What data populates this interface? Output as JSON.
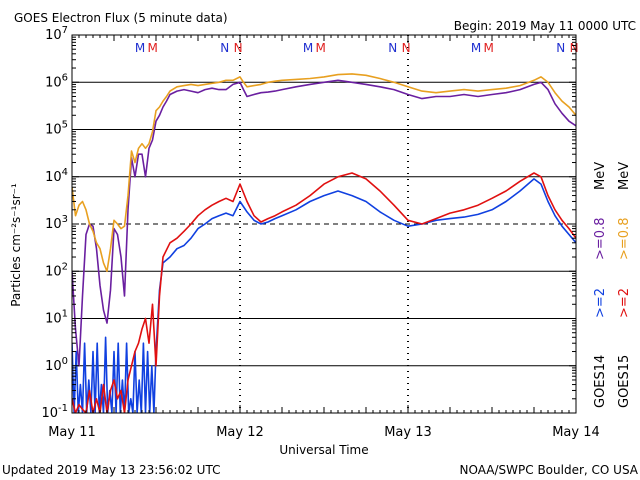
{
  "chart_data": {
    "type": "line",
    "title": "GOES Electron Flux (5 minute data)",
    "begin_label": "Begin: 2019 May 11 0000 UTC",
    "xlabel": "Universal Time",
    "ylabel": "Particles cm⁻²s⁻¹sr⁻¹",
    "y_scale": "log",
    "ylim": [
      0.1,
      10000000
    ],
    "y_ticks": [
      {
        "value": 0.1,
        "base": "10",
        "exp": "-1"
      },
      {
        "value": 1,
        "base": "10",
        "exp": "0"
      },
      {
        "value": 10,
        "base": "10",
        "exp": "1"
      },
      {
        "value": 100,
        "base": "10",
        "exp": "2"
      },
      {
        "value": 1000,
        "base": "10",
        "exp": "3"
      },
      {
        "value": 10000,
        "base": "10",
        "exp": "4"
      },
      {
        "value": 100000,
        "base": "10",
        "exp": "5"
      },
      {
        "value": 1000000,
        "base": "10",
        "exp": "6"
      },
      {
        "value": 10000000,
        "base": "10",
        "exp": "7"
      }
    ],
    "xlim_hours": [
      0,
      72
    ],
    "x_ticks": [
      {
        "hour": 0,
        "label": "May 11"
      },
      {
        "hour": 24,
        "label": "May 12"
      },
      {
        "hour": 48,
        "label": "May 13"
      },
      {
        "hour": 72,
        "label": "May 14"
      }
    ],
    "grid": true,
    "threshold_line": 1000,
    "markers": [
      {
        "hour": 10.3,
        "text": "M",
        "color": "#2030d0"
      },
      {
        "hour": 12.1,
        "text": "M",
        "color": "#e02020"
      },
      {
        "hour": 22.4,
        "text": "N",
        "color": "#2030d0"
      },
      {
        "hour": 24.3,
        "text": "N",
        "color": "#e02020"
      },
      {
        "hour": 34.3,
        "text": "M",
        "color": "#2030d0"
      },
      {
        "hour": 36.1,
        "text": "M",
        "color": "#e02020"
      },
      {
        "hour": 46.4,
        "text": "N",
        "color": "#2030d0"
      },
      {
        "hour": 48.3,
        "text": "N",
        "color": "#e02020"
      },
      {
        "hour": 58.3,
        "text": "M",
        "color": "#2030d0"
      },
      {
        "hour": 60.1,
        "text": "M",
        "color": "#e02020"
      },
      {
        "hour": 70.4,
        "text": "N",
        "color": "#2030d0"
      },
      {
        "hour": 72.3,
        "text": "N",
        "color": "#e02020"
      }
    ],
    "right_legend": {
      "goes14": "GOES14",
      "goes15": "GOES15",
      "ge2": ">=2",
      "ge08": ">=0.8",
      "mev": "MeV"
    },
    "series": [
      {
        "name": "GOES14 >=0.8 MeV",
        "color": "#6a1fa0",
        "x": [
          0,
          0.5,
          1,
          1.5,
          2,
          2.5,
          3,
          3.5,
          4,
          4.5,
          5,
          5.5,
          6,
          6.5,
          7,
          7.5,
          8,
          8.5,
          9,
          9.5,
          10,
          10.5,
          11,
          11.5,
          12,
          12.5,
          13,
          13.5,
          14,
          15,
          16,
          17,
          18,
          19,
          20,
          21,
          22,
          23,
          24,
          24.5,
          25,
          26,
          27,
          28,
          29,
          30,
          32,
          34,
          36,
          38,
          40,
          42,
          44,
          46,
          48,
          50,
          52,
          54,
          56,
          58,
          60,
          62,
          64,
          66,
          67,
          68,
          69,
          70,
          71,
          72
        ],
        "y": [
          100,
          6,
          1,
          30,
          600,
          1000,
          900,
          300,
          50,
          15,
          8,
          40,
          800,
          600,
          200,
          30,
          2000,
          25000,
          10000,
          30000,
          30000,
          10000,
          40000,
          60000,
          150000,
          200000,
          300000,
          400000,
          550000,
          650000,
          700000,
          650000,
          600000,
          700000,
          750000,
          700000,
          700000,
          900000,
          1000000,
          700000,
          500000,
          550000,
          600000,
          620000,
          650000,
          700000,
          800000,
          900000,
          1000000,
          1100000,
          1000000,
          900000,
          800000,
          700000,
          550000,
          450000,
          500000,
          500000,
          550000,
          500000,
          550000,
          600000,
          700000,
          900000,
          1000000,
          700000,
          350000,
          220000,
          150000,
          120000
        ]
      },
      {
        "name": "GOES15 >=0.8 MeV",
        "color": "#e8a020",
        "x": [
          0,
          0.5,
          1,
          1.5,
          2,
          2.5,
          3,
          3.5,
          4,
          4.5,
          5,
          5.5,
          6,
          6.5,
          7,
          7.5,
          8,
          8.5,
          9,
          9.5,
          10,
          10.5,
          11,
          11.5,
          12,
          12.5,
          13,
          13.5,
          14,
          15,
          16,
          17,
          18,
          19,
          20,
          21,
          22,
          23,
          24,
          24.5,
          25,
          26,
          27,
          28,
          29,
          30,
          32,
          34,
          36,
          38,
          40,
          42,
          44,
          46,
          48,
          50,
          52,
          54,
          56,
          58,
          60,
          62,
          64,
          66,
          67,
          68,
          69,
          70,
          71,
          72
        ],
        "y": [
          6000,
          1500,
          2500,
          3000,
          2000,
          1000,
          700,
          400,
          300,
          150,
          100,
          300,
          1200,
          1000,
          800,
          900,
          4000,
          35000,
          20000,
          40000,
          50000,
          40000,
          50000,
          90000,
          250000,
          300000,
          400000,
          500000,
          650000,
          800000,
          850000,
          900000,
          850000,
          900000,
          950000,
          1000000,
          1100000,
          1100000,
          1300000,
          1000000,
          800000,
          850000,
          900000,
          1000000,
          1050000,
          1100000,
          1150000,
          1200000,
          1300000,
          1450000,
          1500000,
          1400000,
          1200000,
          1000000,
          800000,
          650000,
          600000,
          650000,
          700000,
          650000,
          700000,
          750000,
          850000,
          1100000,
          1300000,
          1000000,
          600000,
          400000,
          300000,
          200000
        ]
      },
      {
        "name": "GOES14 >=2 MeV",
        "color": "#1040e0",
        "x": [
          0,
          0.3,
          0.6,
          0.9,
          1.2,
          1.5,
          1.8,
          2.1,
          2.4,
          2.7,
          3,
          3.3,
          3.6,
          3.9,
          4.2,
          4.5,
          4.8,
          5.1,
          5.4,
          5.7,
          6,
          6.3,
          6.6,
          6.9,
          7.2,
          7.5,
          7.8,
          8.1,
          8.4,
          8.7,
          9,
          9.3,
          9.6,
          9.9,
          10.2,
          10.5,
          10.8,
          11.1,
          11.4,
          11.7,
          12,
          12.5,
          13,
          14,
          15,
          16,
          17,
          18,
          19,
          20,
          21,
          22,
          23,
          24,
          25,
          26,
          27,
          28,
          29,
          30,
          32,
          34,
          36,
          38,
          40,
          42,
          44,
          46,
          48,
          50,
          52,
          54,
          56,
          58,
          60,
          62,
          64,
          66,
          67,
          68,
          69,
          70,
          71,
          72
        ],
        "y": [
          3,
          0.1,
          2,
          0.1,
          0.4,
          0.1,
          3,
          0.1,
          0.5,
          0.1,
          2,
          0.1,
          3,
          0.1,
          0.4,
          0.1,
          4,
          0.1,
          0.3,
          0.1,
          2,
          0.1,
          3,
          0.1,
          0.5,
          0.1,
          3,
          0.1,
          0.2,
          0.1,
          2,
          0.1,
          0.5,
          0.1,
          3,
          0.1,
          2,
          0.1,
          1,
          0.1,
          2,
          40,
          150,
          200,
          300,
          350,
          500,
          800,
          1000,
          1300,
          1500,
          1700,
          1500,
          3000,
          1800,
          1200,
          1000,
          1100,
          1300,
          1500,
          2000,
          3000,
          4000,
          5000,
          4000,
          3000,
          1800,
          1200,
          900,
          1000,
          1200,
          1300,
          1400,
          1600,
          2000,
          3000,
          5000,
          9000,
          7000,
          3000,
          1500,
          900,
          600,
          400
        ]
      },
      {
        "name": "GOES15 >=2 MeV",
        "color": "#e01010",
        "x": [
          0,
          0.5,
          1,
          1.5,
          2,
          2.5,
          3,
          3.5,
          4,
          4.5,
          5,
          5.5,
          6,
          6.5,
          7,
          7.5,
          8,
          8.5,
          9,
          9.5,
          10,
          10.5,
          11,
          11.5,
          12,
          12.5,
          13,
          14,
          15,
          16,
          17,
          18,
          19,
          20,
          21,
          22,
          23,
          24,
          25,
          26,
          27,
          28,
          29,
          30,
          32,
          34,
          36,
          38,
          40,
          42,
          44,
          46,
          48,
          50,
          52,
          54,
          56,
          58,
          60,
          62,
          64,
          66,
          67,
          68,
          69,
          70,
          71,
          72
        ],
        "y": [
          0.2,
          0.1,
          0.15,
          0.12,
          0.1,
          0.3,
          0.1,
          0.2,
          0.1,
          0.4,
          0.1,
          0.3,
          0.5,
          0.2,
          0.3,
          0.1,
          0.5,
          1,
          2,
          3,
          6,
          10,
          3,
          20,
          1,
          30,
          200,
          400,
          500,
          700,
          1000,
          1500,
          2000,
          2500,
          3000,
          3500,
          3000,
          7000,
          3000,
          1500,
          1100,
          1300,
          1500,
          1800,
          2500,
          4000,
          7000,
          10000,
          12000,
          9000,
          5000,
          2500,
          1200,
          1000,
          1300,
          1700,
          2000,
          2500,
          3500,
          5000,
          8000,
          12000,
          10000,
          4000,
          2000,
          1200,
          800,
          500
        ]
      }
    ]
  },
  "footer": {
    "updated": "Updated 2019 May 13 23:56:02 UTC",
    "source": "NOAA/SWPC Boulder, CO USA"
  }
}
